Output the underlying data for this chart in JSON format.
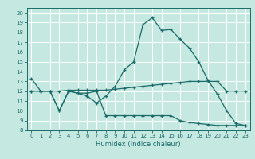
{
  "xlabel": "Humidex (Indice chaleur)",
  "xlim": [
    -0.5,
    23.5
  ],
  "ylim": [
    8,
    20.5
  ],
  "yticks": [
    8,
    9,
    10,
    11,
    12,
    13,
    14,
    15,
    16,
    17,
    18,
    19,
    20
  ],
  "xticks": [
    0,
    1,
    2,
    3,
    4,
    5,
    6,
    7,
    8,
    9,
    10,
    11,
    12,
    13,
    14,
    15,
    16,
    17,
    18,
    19,
    20,
    21,
    22,
    23
  ],
  "bg_color": "#c5e8e0",
  "grid_color": "#ffffff",
  "line_color": "#1a6b6b",
  "line1_y": [
    13.3,
    12.0,
    12.0,
    10.0,
    12.0,
    11.8,
    11.5,
    10.8,
    11.5,
    12.5,
    14.2,
    15.0,
    18.8,
    19.5,
    18.2,
    18.3,
    17.3,
    16.4,
    15.0,
    13.1,
    11.7,
    10.0,
    8.7,
    8.5
  ],
  "line2_y": [
    12.0,
    12.0,
    12.0,
    12.0,
    12.1,
    12.1,
    12.1,
    12.1,
    12.1,
    12.2,
    12.3,
    12.4,
    12.5,
    12.6,
    12.7,
    12.8,
    12.9,
    13.0,
    13.0,
    13.0,
    13.0,
    12.0,
    12.0,
    12.0
  ],
  "line3_y": [
    12.0,
    12.0,
    12.0,
    10.0,
    12.0,
    11.8,
    11.8,
    12.0,
    9.5,
    9.5,
    9.5,
    9.5,
    9.5,
    9.5,
    9.5,
    9.5,
    9.0,
    8.8,
    8.7,
    8.6,
    8.5,
    8.5,
    8.5,
    8.5
  ]
}
